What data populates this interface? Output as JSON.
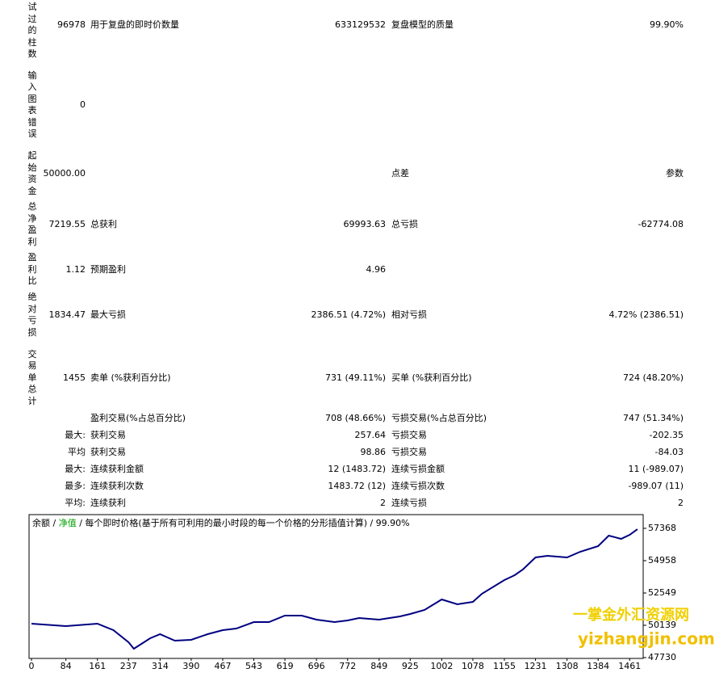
{
  "report": {
    "rows": [
      {
        "side": "测试过的柱数",
        "c1": "96978",
        "c2": "用于复盘的即时价数量",
        "c3": "633129532",
        "c4": "复盘模型的质量",
        "c5": "99.90%"
      },
      {
        "side": "输入图表错误",
        "c1": "0"
      },
      {
        "side": "起始资金",
        "c1": "50000.00",
        "c4": "点差",
        "c5": "参数"
      },
      {
        "side": "总净盈利",
        "c1": "7219.55",
        "c2": "总获利",
        "c3": "69993.63",
        "c4": "总亏损",
        "c5": "-62774.08"
      },
      {
        "side": "盈利比",
        "c1": "1.12",
        "c2": "预期盈利",
        "c3": "4.96"
      },
      {
        "side": "绝对亏损",
        "c1": "1834.47",
        "c2": "最大亏损",
        "c3": "2386.51 (4.72%)",
        "c4": "相对亏损",
        "c5": "4.72% (2386.51)"
      },
      {
        "side": "交易单总计",
        "c1": "1455",
        "c2": "卖单 (%获利百分比)",
        "c3": "731 (49.11%)",
        "c4": "买单 (%获利百分比)",
        "c5": "724 (48.20%)"
      },
      {
        "c2": "盈利交易(%占总百分比)",
        "c3": "708 (48.66%)",
        "c4": "亏损交易(%占总百分比)",
        "c5": "747 (51.34%)"
      },
      {
        "c1": "最大:",
        "c2": "获利交易",
        "c3": "257.64",
        "c4": "亏损交易",
        "c5": "-202.35"
      },
      {
        "c1": "平均",
        "c2": "获利交易",
        "c3": "98.86",
        "c4": "亏损交易",
        "c5": "-84.03"
      },
      {
        "c1": "最大:",
        "c2": "连续获利金额",
        "c3": "12 (1483.72)",
        "c4": "连续亏损金额",
        "c5": "11 (-989.07)"
      },
      {
        "c1": "最多:",
        "c2": "连续获利次数",
        "c3": "1483.72 (12)",
        "c4": "连续亏损次数",
        "c5": "-989.07 (11)"
      },
      {
        "c1": "平均:",
        "c2": "连续获利",
        "c3": "2",
        "c4": "连续亏损",
        "c5": "2"
      }
    ]
  },
  "chart_data": {
    "type": "line",
    "header": [
      {
        "text": "余额",
        "color": "#000000"
      },
      {
        "text": " / ",
        "color": "#000000"
      },
      {
        "text": "净值",
        "color": "#00a000"
      },
      {
        "text": " / 每个即时价格(基于所有可利用的最小时段的每一个价格的分形插值计算) / 99.90%",
        "color": "#000000"
      }
    ],
    "x": [
      0,
      84,
      161,
      200,
      237,
      250,
      290,
      314,
      350,
      390,
      430,
      467,
      500,
      543,
      580,
      619,
      660,
      696,
      740,
      772,
      800,
      849,
      900,
      925,
      960,
      1002,
      1040,
      1078,
      1100,
      1155,
      1180,
      1200,
      1231,
      1260,
      1308,
      1340,
      1384,
      1410,
      1440,
      1461,
      1480
    ],
    "series": [
      {
        "name": "余额",
        "color": "#000080",
        "values": [
          50259,
          50079,
          50259,
          49778,
          48874,
          48392,
          49175,
          49477,
          48995,
          49055,
          49477,
          49778,
          49898,
          50380,
          50380,
          50862,
          50862,
          50561,
          50380,
          50500,
          50681,
          50561,
          50801,
          50982,
          51283,
          52066,
          51705,
          51886,
          52488,
          53512,
          53873,
          54295,
          55198,
          55318,
          55198,
          55619,
          56041,
          56824,
          56583,
          56884,
          57306
        ]
      }
    ],
    "xlim": [
      -6,
      1494
    ],
    "ylim": [
      47730,
      58300
    ],
    "xticks": [
      0,
      84,
      161,
      237,
      314,
      390,
      467,
      543,
      619,
      696,
      772,
      849,
      925,
      1002,
      1078,
      1155,
      1231,
      1308,
      1384,
      1461
    ],
    "yticks": [
      47730,
      50139,
      52549,
      54958,
      57368
    ]
  },
  "watermark": {
    "line1": "一掌金外汇资源网",
    "line2": "yizhangjin.com"
  }
}
